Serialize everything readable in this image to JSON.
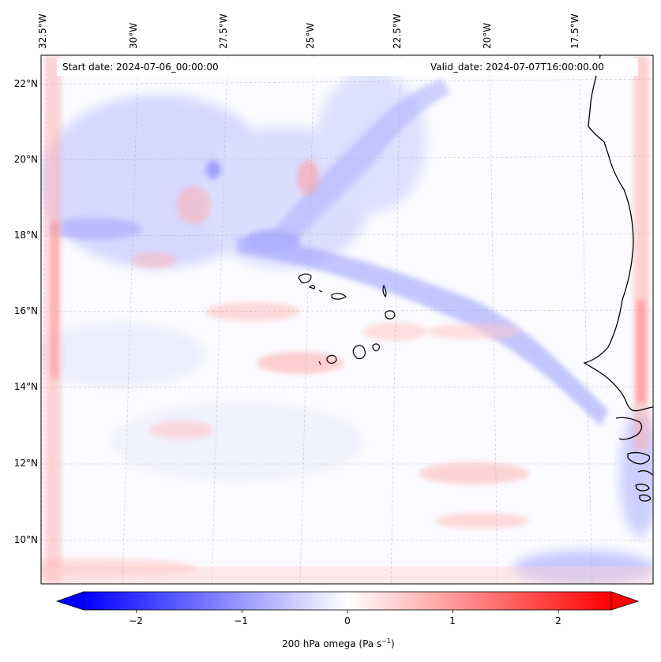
{
  "map": {
    "start_date_text": "Start date: 2024-07-06_00:00:00",
    "valid_date_text": "Valid_date: 2024-07-07T16:00:00.00",
    "lon_labels": [
      "32.5°W",
      "30°W",
      "27.5°W",
      "25°W",
      "22.5°W",
      "20°W",
      "17.5°W"
    ],
    "lat_labels": [
      "22°N",
      "20°N",
      "18°N",
      "16°N",
      "14°N",
      "12°N",
      "10°N"
    ],
    "field": "200 hPa omega",
    "extent": {
      "lon_min": -33.0,
      "lon_max": -15.4,
      "lat_min": 8.9,
      "lat_max": 22.7
    }
  },
  "colorbar": {
    "label": "200 hPa omega (Pa s",
    "label_sup": "−1",
    "label_close": ")",
    "ticks": [
      "−2",
      "−1",
      "0",
      "1",
      "2"
    ],
    "tick_values": [
      -2,
      -1,
      0,
      1,
      2
    ],
    "vmin": -2.5,
    "vmax": 2.5,
    "cmap": "bwr",
    "colors": {
      "low": "#0000ff",
      "mid": "#ffffff",
      "high": "#ff0000"
    },
    "extend": "both"
  }
}
